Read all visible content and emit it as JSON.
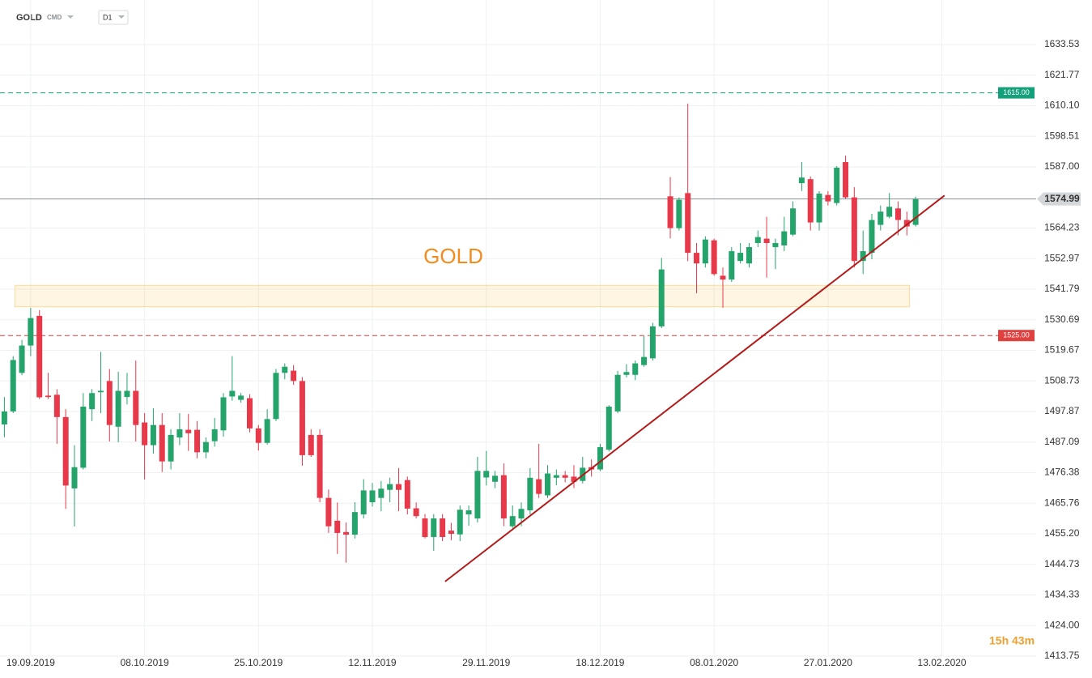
{
  "header": {
    "symbol": "GOLD",
    "market": "CMD",
    "interval": "D1"
  },
  "chart_data": {
    "type": "candlestick",
    "annotation": "GOLD",
    "countdown": "15h 43m",
    "log_scale": true,
    "grid": true,
    "up_color": "#24a36b",
    "down_color": "#e8394a",
    "categories": [
      null,
      null,
      null,
      "19.09.2019",
      null,
      null,
      null,
      null,
      null,
      null,
      null,
      null,
      null,
      null,
      null,
      null,
      "08.10.2019",
      null,
      null,
      null,
      null,
      null,
      null,
      null,
      null,
      null,
      null,
      null,
      null,
      "25.10.2019",
      null,
      null,
      null,
      null,
      null,
      null,
      null,
      null,
      null,
      null,
      null,
      null,
      "12.11.2019",
      null,
      null,
      null,
      null,
      null,
      null,
      null,
      null,
      null,
      null,
      null,
      null,
      "29.11.2019",
      null,
      null,
      null,
      null,
      null,
      null,
      null,
      null,
      null,
      null,
      null,
      null,
      "18.12.2019",
      null,
      null,
      null,
      null,
      null,
      null,
      null,
      null,
      null,
      null,
      null,
      null,
      "08.01.2020",
      null,
      null,
      null,
      null,
      null,
      null,
      null,
      null,
      null,
      null,
      null,
      null,
      "27.01.2020",
      null,
      null,
      null,
      null,
      null,
      null,
      null,
      null,
      null,
      null,
      null,
      null,
      "13.02.2020"
    ],
    "open": [
      1493.3,
      1497.9,
      1511.6,
      1521.4,
      1532.1,
      1503.5,
      1503.8,
      1495.9,
      1470.9,
      1478.1,
      1498.7,
      1504.7,
      1508.7,
      1492.5,
      1503.0,
      1505.2,
      1494.0,
      1486.0,
      1493.1,
      1480.3,
      1488.7,
      1491.4,
      1491.4,
      1483.5,
      1487.4,
      1491.2,
      1503.2,
      1502.0,
      1502.6,
      1491.9,
      1486.8,
      1495.2,
      1511.6,
      1512.4,
      1508.7,
      1489.6,
      1489.6,
      1467.6,
      1459.7,
      1455.8,
      1454.9,
      1461.9,
      1466.1,
      1467.6,
      1470.4,
      1472.4,
      1473.8,
      1464.0,
      1460.5,
      1454.1,
      1460.5,
      1456.3,
      1455.0,
      1461.9,
      1460.5,
      1474.7,
      1473.2,
      1475.5,
      1457.8,
      1460.5,
      1463.3,
      1474.1,
      1468.5,
      1474.6,
      1475.5,
      1475.0,
      1473.5,
      1478.3,
      1477.5,
      1484.4,
      1497.9,
      1510.9,
      1510.9,
      1514.4,
      1516.8,
      1528.3,
      1576.0,
      1564.2,
      1577.2,
      1555.1,
      1551.2,
      1559.7,
      1546.7,
      1545.3,
      1552.1,
      1551.2,
      1558.7,
      1560.3,
      1557.2,
      1557.8,
      1561.8,
      1580.9,
      1582.4,
      1566.3,
      1576.5,
      1573.5,
      1588.8,
      1575.6,
      1552.1,
      1555.1,
      1565.4,
      1568.4,
      1571.5,
      1567.2,
      1565.4,
      null,
      null,
      null
    ],
    "high": [
      1503.0,
      1517.6,
      1523.4,
      1535.0,
      1534.2,
      1511.6,
      1505.8,
      1498.7,
      1486.0,
      1504.4,
      1505.8,
      1519.1,
      1513.0,
      1512.0,
      1511.6,
      1516.0,
      1497.3,
      1499.0,
      1497.3,
      1491.6,
      1497.3,
      1497.0,
      1494.5,
      1488.7,
      1495.6,
      1504.4,
      1517.6,
      1504.5,
      1504.0,
      1493.1,
      1498.7,
      1513.0,
      1515.0,
      1514.4,
      1510.1,
      1491.6,
      1491.6,
      1470.5,
      1466.0,
      1459.1,
      1466.1,
      1474.1,
      1472.8,
      1473.5,
      1474.6,
      1478.0,
      1475.0,
      1466.0,
      1462.0,
      1462.0,
      1462.0,
      1459.0,
      1465.0,
      1465.0,
      1481.9,
      1484.0,
      1477.0,
      1479.6,
      1465.0,
      1466.0,
      1478.0,
      1486.5,
      1479.0,
      1477.5,
      1477.0,
      1479.0,
      1481.9,
      1481.0,
      1486.5,
      1500.1,
      1512.3,
      1514.7,
      1516.0,
      1524.8,
      1529.6,
      1553.2,
      1583.2,
      1575.6,
      1610.9,
      1558.7,
      1561.2,
      1560.3,
      1549.7,
      1557.2,
      1558.7,
      1558.7,
      1563.3,
      1568.4,
      1560.3,
      1568.4,
      1574.1,
      1588.8,
      1583.4,
      1577.9,
      1577.9,
      1587.3,
      1591.2,
      1579.4,
      1563.3,
      1569.5,
      1572.6,
      1577.2,
      1574.1,
      1570.3,
      1575.9,
      null,
      null,
      null
    ],
    "low": [
      1488.8,
      1497.3,
      1510.8,
      1517.6,
      1502.3,
      1502.3,
      1486.5,
      1463.8,
      1457.7,
      1477.5,
      1494.5,
      1497.3,
      1487.3,
      1487.0,
      1500.4,
      1487.3,
      1474.0,
      1483.0,
      1476.6,
      1477.5,
      1486.0,
      1484.0,
      1481.4,
      1481.4,
      1485.5,
      1489.0,
      1501.7,
      1501.0,
      1490.5,
      1484.1,
      1486.2,
      1494.5,
      1509.3,
      1507.3,
      1478.8,
      1481.9,
      1466.1,
      1455.5,
      1448.3,
      1445.3,
      1453.6,
      1460.5,
      1464.6,
      1463.0,
      1466.1,
      1463.0,
      1461.9,
      1460.5,
      1453.6,
      1449.4,
      1452.7,
      1453.0,
      1452.7,
      1458.0,
      1459.1,
      1471.9,
      1471.0,
      1457.8,
      1457.2,
      1457.8,
      1461.9,
      1467.6,
      1467.6,
      1472.0,
      1473.0,
      1471.0,
      1472.6,
      1475.0,
      1476.9,
      1483.8,
      1497.3,
      1510.0,
      1509.0,
      1513.8,
      1516.0,
      1527.7,
      1560.4,
      1563.3,
      1552.0,
      1540.3,
      1549.7,
      1546.7,
      1535.0,
      1544.4,
      1551.2,
      1549.7,
      1557.2,
      1546.0,
      1549.1,
      1555.7,
      1561.2,
      1578.0,
      1563.3,
      1563.3,
      1572.6,
      1572.6,
      1575.0,
      1549.7,
      1547.3,
      1552.7,
      1563.3,
      1567.8,
      1561.5,
      1561.5,
      1564.8,
      null,
      null,
      null
    ],
    "close": [
      1497.9,
      1516.2,
      1521.4,
      1531.3,
      1502.9,
      1503.0,
      1495.9,
      1471.9,
      1478.3,
      1499.6,
      1504.4,
      1505.2,
      1493.1,
      1505.2,
      1505.2,
      1493.1,
      1486.0,
      1493.1,
      1480.3,
      1489.6,
      1491.6,
      1490.2,
      1483.5,
      1487.1,
      1491.6,
      1502.9,
      1505.2,
      1503.5,
      1491.9,
      1486.8,
      1495.2,
      1511.6,
      1513.8,
      1508.7,
      1482.5,
      1482.5,
      1467.6,
      1457.8,
      1455.5,
      1454.9,
      1462.7,
      1470.2,
      1470.2,
      1470.8,
      1472.4,
      1470.4,
      1463.9,
      1461.3,
      1454.1,
      1460.5,
      1454.1,
      1455.2,
      1463.5,
      1463.3,
      1477.0,
      1477.0,
      1475.3,
      1460.5,
      1461.3,
      1463.8,
      1474.6,
      1469.0,
      1476.1,
      1475.5,
      1474.6,
      1473.2,
      1478.1,
      1477.5,
      1485.3,
      1499.6,
      1510.9,
      1511.9,
      1515.0,
      1517.3,
      1528.3,
      1549.0,
      1564.2,
      1574.7,
      1555.1,
      1551.2,
      1560.0,
      1547.3,
      1545.3,
      1555.7,
      1555.1,
      1557.2,
      1560.9,
      1558.7,
      1558.7,
      1563.0,
      1571.5,
      1583.0,
      1566.3,
      1577.0,
      1574.1,
      1586.7,
      1575.6,
      1552.1,
      1555.7,
      1567.2,
      1570.3,
      1572.1,
      1567.2,
      1564.8,
      1574.99,
      null,
      null,
      null
    ],
    "ylim": [
      1413.75,
      1633.53
    ],
    "yticks": [
      1633.53,
      1621.77,
      {
        "value": 1610.1,
        "label": "1610.10"
      },
      1598.51,
      {
        "value": 1587,
        "label": "1587.00"
      },
      1564.23,
      1552.97,
      1541.79,
      1530.69,
      1519.67,
      1508.73,
      1497.87,
      1487.09,
      1476.38,
      1465.76,
      {
        "value": 1455.2,
        "label": "1455.20"
      },
      1444.73,
      1434.33,
      {
        "value": 1424,
        "label": "1424.00"
      },
      1413.75
    ],
    "levels": [
      {
        "value": 1615,
        "label": "1615.00",
        "color": "#13a07a",
        "dash": true
      },
      {
        "value": 1525,
        "label": "1525.00",
        "color": "#e0413f",
        "dash": true
      },
      {
        "value": 1574.99,
        "label": "1574.99",
        "color": "#8a9096",
        "dash": false
      }
    ],
    "zone": {
      "x": [
        1.2,
        103.3
      ],
      "y": [
        1535.4,
        1543.2
      ],
      "color": "#f7c860"
    },
    "trendline": {
      "x": [
        50.3,
        107.3
      ],
      "y": [
        1438.9,
        1576.3
      ],
      "color": "#b31b1b"
    }
  }
}
